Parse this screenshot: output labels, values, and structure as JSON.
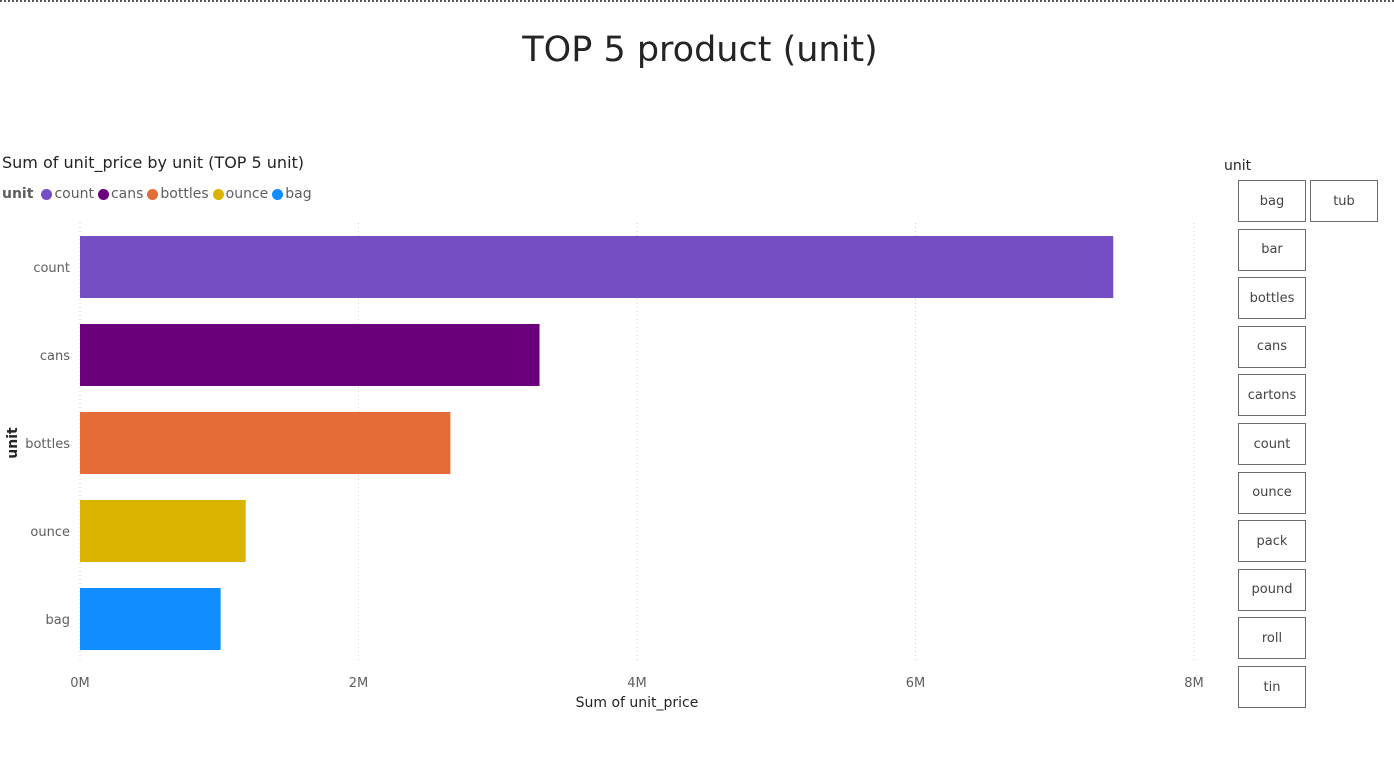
{
  "page": {
    "title": "TOP 5 product (unit)"
  },
  "chart_data": {
    "type": "bar",
    "orientation": "horizontal",
    "title": "Sum of unit_price by unit (TOP 5 unit)",
    "legend_title": "unit",
    "legend_position": "top-left",
    "categories": [
      "count",
      "cans",
      "bottles",
      "ounce",
      "bag"
    ],
    "values": [
      7420000,
      3300000,
      2660000,
      1190000,
      1010000
    ],
    "colors": [
      "#744EC2",
      "#6B007B",
      "#E66C37",
      "#D9B300",
      "#118DFF"
    ],
    "xlabel": "Sum of unit_price",
    "ylabel": "unit",
    "xlim": [
      0,
      8000000
    ],
    "x_ticks": [
      {
        "value": 0,
        "label": "0M"
      },
      {
        "value": 2000000,
        "label": "2M"
      },
      {
        "value": 4000000,
        "label": "4M"
      },
      {
        "value": 6000000,
        "label": "6M"
      },
      {
        "value": 8000000,
        "label": "8M"
      }
    ],
    "grid": "vertical dotted"
  },
  "slicer": {
    "title": "unit",
    "items": [
      "bag",
      "tub",
      "bar",
      "bottles",
      "cans",
      "cartons",
      "count",
      "ounce",
      "pack",
      "pound",
      "roll",
      "tin"
    ]
  }
}
